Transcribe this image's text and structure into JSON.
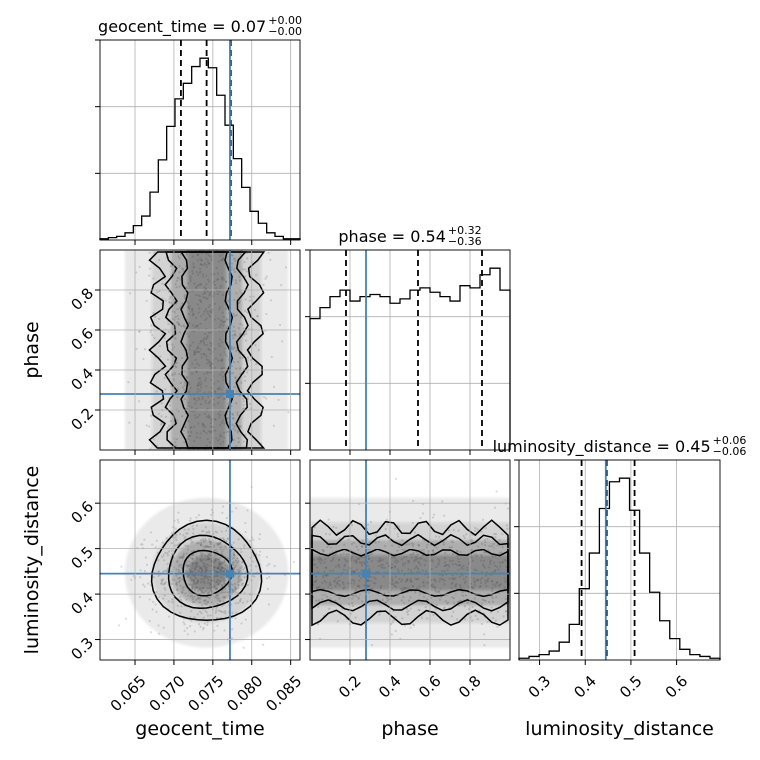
{
  "colors": {
    "truth": "#4682b4",
    "hist": "#000000",
    "grid": "#b0b0b0",
    "contour": "#000000",
    "scatter": "#9a9a9a"
  },
  "chart_data": {
    "type": "corner",
    "parameters": [
      "geocent_time",
      "phase",
      "luminosity_distance"
    ],
    "axis_labels": [
      "geocent_time",
      "phase",
      "luminosity_distance"
    ],
    "titles": [
      {
        "name": "geocent_time",
        "text": "geocent_time = 0.07",
        "plus": "+0.00",
        "minus": "−0.00"
      },
      {
        "name": "phase",
        "text": "phase = 0.54",
        "plus": "+0.32",
        "minus": "−0.36"
      },
      {
        "name": "luminosity_distance",
        "text": "luminosity_distance = 0.45",
        "plus": "+0.06",
        "minus": "−0.06"
      }
    ],
    "ranges": [
      [
        0.0605,
        0.0862
      ],
      [
        0.0,
        1.0
      ],
      [
        0.255,
        0.695
      ]
    ],
    "ticks": [
      {
        "values": [
          0.065,
          0.07,
          0.075,
          0.08,
          0.085
        ],
        "labels": [
          "0.065",
          "0.070",
          "0.075",
          "0.080",
          "0.085"
        ]
      },
      {
        "values": [
          0.2,
          0.4,
          0.6,
          0.8
        ],
        "labels": [
          "0.2",
          "0.4",
          "0.6",
          "0.8"
        ]
      },
      {
        "values": [
          0.3,
          0.4,
          0.5,
          0.6
        ],
        "labels": [
          "0.3",
          "0.4",
          "0.5",
          "0.6"
        ]
      }
    ],
    "truths": [
      0.0772,
      0.28,
      0.445
    ],
    "quantiles": [
      [
        0.0709,
        0.0742,
        0.0773
      ],
      [
        0.18,
        0.54,
        0.86
      ],
      [
        0.392,
        0.447,
        0.508
      ]
    ],
    "histograms": [
      {
        "parameter": "geocent_time",
        "counts": [
          1,
          2,
          3,
          6,
          12,
          20,
          40,
          67,
          95,
          118,
          131,
          145,
          152,
          144,
          121,
          96,
          68,
          44,
          24,
          14,
          6,
          3,
          1,
          1
        ]
      },
      {
        "parameter": "phase",
        "counts": [
          60,
          65,
          70,
          73,
          68,
          70,
          71,
          70,
          67,
          69,
          73,
          74,
          72,
          70,
          68,
          75,
          74,
          80,
          83,
          73
        ]
      },
      {
        "parameter": "luminosity_distance",
        "counts": [
          1,
          2,
          3,
          5,
          10,
          20,
          40,
          60,
          85,
          100,
          102,
          84,
          60,
          38,
          22,
          12,
          6,
          3,
          2,
          1
        ]
      }
    ],
    "grid": true
  }
}
